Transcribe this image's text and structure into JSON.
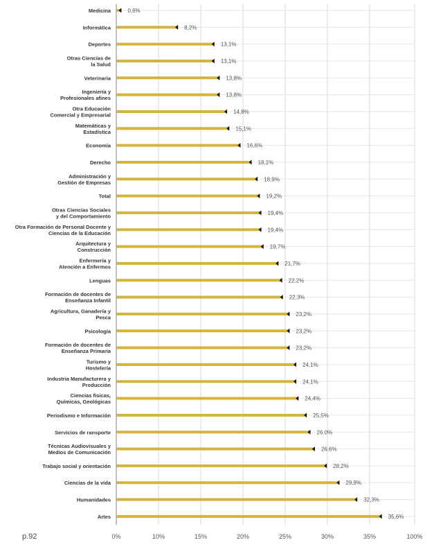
{
  "page_label": "p.92",
  "chart_data": {
    "type": "bar",
    "orientation": "horizontal",
    "title": "",
    "xlabel": "",
    "ylabel": "",
    "bar_color": "#d4b43c",
    "marker_color": "#111111",
    "grid": true,
    "x_tick_labels": [
      "0%",
      "10%",
      "15%",
      "20%",
      "25%",
      "30%",
      "35%",
      "100%"
    ],
    "categories": [
      "Medicina",
      "Informática",
      "Deportes",
      "Otras Ciencias de\nla Salud",
      "Veterinaria",
      "Ingeniería y\nProfesionales afines",
      "Otra Educación\nComercial y Empresarial",
      "Matemáticas y\nEstadística",
      "Economía",
      "Derecho",
      "Administración y\nGestión de Empresas",
      "Total",
      "Otras Ciencias Sociales\ny del Comportamiento",
      "Otra Formación de Personal Docente y\nCiencias de la Educación",
      "Arquitectura y\nConstrucción",
      "Enfermería y\nAtención a Enfermos",
      "Lenguas",
      "Formación de docentes de\nEnseñanza Infantil",
      "Agricultura, Ganadería y\nPesca",
      "Psicología",
      "Formación de docentes de\nEnseñanza Primaria",
      "Turismo y\nHostelería",
      "Industria Manufacturera y\nProducción",
      "Ciencias físicas,\nQuímicas, Geológicas",
      "Periodismo e Información",
      "Servicios de ransporte",
      "Técnicas Audiovisuales y\nMedios de Comunicación",
      "Trabajo social y orientación",
      "Ciencias de la vida",
      "Humanidades",
      "Artes"
    ],
    "values": [
      0.6,
      8.2,
      13.1,
      13.1,
      13.8,
      13.8,
      14.8,
      15.1,
      16.6,
      18.1,
      18.9,
      19.2,
      19.4,
      19.4,
      19.7,
      21.7,
      22.2,
      22.3,
      23.2,
      23.2,
      23.2,
      24.1,
      24.1,
      24.4,
      25.5,
      26.0,
      26.6,
      28.2,
      29.9,
      32.3,
      35.6
    ],
    "value_labels": [
      "0,6%",
      "8,2%",
      "13,1%",
      "13,1%",
      "13,8%",
      "13,8%",
      "14,8%",
      "15,1%",
      "16,6%",
      "18,1%",
      "18,9%",
      "19,2%",
      "19,4%",
      "19,4%",
      "19,7%",
      "21,7%",
      "22,2%",
      "22,3%",
      "23,2%",
      "23,2%",
      "23,2%",
      "24,1%",
      "24,1%",
      "24,4%",
      "25,5%",
      "26.0%",
      "26.6%",
      "28,2%",
      "29,9%",
      "32,3%",
      "35,6%"
    ]
  }
}
